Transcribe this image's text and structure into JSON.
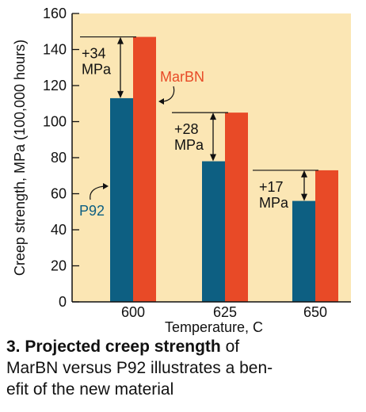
{
  "chart_data": {
    "type": "bar",
    "categories": [
      "600",
      "625",
      "650"
    ],
    "series": [
      {
        "name": "P92",
        "values": [
          113,
          78,
          56
        ],
        "color": "#0d5f82"
      },
      {
        "name": "MarBN",
        "values": [
          147,
          105,
          73
        ],
        "color": "#e84a27"
      }
    ],
    "xlabel": "Temperature, C",
    "ylabel": "Creep strength, MPa (100,000 hours)",
    "ylim": [
      0,
      160
    ],
    "yticks": [
      "0",
      "20",
      "40",
      "60",
      "80",
      "100",
      "120",
      "140",
      "160"
    ],
    "background_color": "#fbe6b4",
    "annotations": [
      {
        "category": "600",
        "lines": [
          "+34",
          "MPa"
        ]
      },
      {
        "category": "625",
        "lines": [
          "+28",
          "MPa"
        ]
      },
      {
        "category": "650",
        "lines": [
          "+17",
          "MPa"
        ]
      }
    ],
    "series_labels": [
      {
        "series": "MarBN",
        "text": "MarBN"
      },
      {
        "series": "P92",
        "text": "P92"
      }
    ]
  },
  "caption": {
    "bold": "3. Projected creep strength",
    "line1_rest": " of",
    "line2": "MarBN versus P92 illustrates a ben-",
    "line3": "efit of the new material"
  }
}
